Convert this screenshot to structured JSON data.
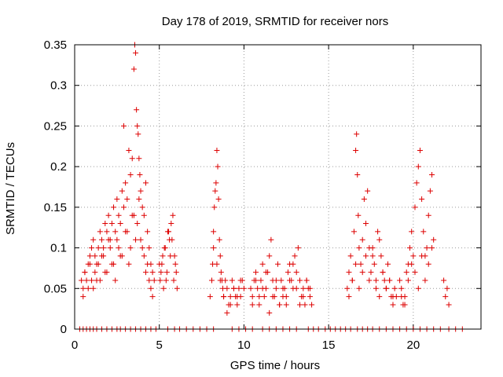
{
  "chart_data": {
    "type": "scatter",
    "title": "Day 178 of 2019, SRMTID for receiver nors",
    "xlabel": "GPS time / hours",
    "ylabel": "SRMTID / TECUs",
    "xlim": [
      0,
      24
    ],
    "ylim": [
      0,
      0.35
    ],
    "grid": true,
    "marker": "+",
    "color": "#dd0000",
    "x_ticks": [
      0,
      5,
      10,
      15,
      20
    ],
    "x_tick_labels": [
      "0",
      "5",
      "10",
      "15",
      "20"
    ],
    "y_ticks": [
      0,
      0.05,
      0.1,
      0.15,
      0.2,
      0.25,
      0.3,
      0.35
    ],
    "y_tick_labels": [
      "0",
      "0.05",
      "0.1",
      "0.15",
      "0.2",
      "0.25",
      "0.3",
      "0.35"
    ],
    "series": [
      {
        "name": "SRMTID",
        "x": [
          0.3,
          0.5,
          0.7,
          0.9,
          1.1,
          1.3,
          1.6,
          1.9,
          2.2,
          2.5,
          2.7,
          3.0,
          3.3,
          3.6,
          3.9,
          4.2,
          4.5,
          4.8,
          5.5,
          5.9,
          6.2,
          6.6,
          7.0,
          7.4,
          7.8,
          8.2,
          9.3,
          9.7,
          10.1,
          10.5,
          11.1,
          11.5,
          11.9,
          12.3,
          12.7,
          13.1,
          13.8,
          14.1,
          14.4,
          14.8,
          15.1,
          15.4,
          15.7,
          16.0,
          16.3,
          16.7,
          17.0,
          17.3,
          17.6,
          18.0,
          18.4,
          18.8,
          19.2,
          19.6,
          20.0,
          20.4,
          20.8,
          21.2,
          21.6,
          22.1,
          22.5,
          22.9,
          0.4,
          0.5,
          0.6,
          0.7,
          0.8,
          0.9,
          1.0,
          1.1,
          1.2,
          1.3,
          1.4,
          1.5,
          1.6,
          1.7,
          1.8,
          1.9,
          2.0,
          2.1,
          2.2,
          2.3,
          2.4,
          2.5,
          2.6,
          2.7,
          2.8,
          2.9,
          3.0,
          3.1,
          3.2,
          3.3,
          3.4,
          3.5,
          3.55,
          3.6,
          3.65,
          3.7,
          3.75,
          3.8,
          3.85,
          3.9,
          4.0,
          4.1,
          4.2,
          4.3,
          4.4,
          4.5,
          4.6,
          4.7,
          0.5,
          0.8,
          1.0,
          1.2,
          1.4,
          1.5,
          1.7,
          1.9,
          2.1,
          2.3,
          2.5,
          2.7,
          2.9,
          3.1,
          3.3,
          3.5,
          3.7,
          3.9,
          4.1,
          4.3,
          4.5,
          0.6,
          0.9,
          1.1,
          1.3,
          1.6,
          1.8,
          2.0,
          2.2,
          2.4,
          2.6,
          2.8,
          3.0,
          3.2,
          3.4,
          3.6,
          3.8,
          4.0,
          4.2,
          4.4,
          4.6,
          5.0,
          5.1,
          5.2,
          5.3,
          5.4,
          5.5,
          5.6,
          5.7,
          5.8,
          5.9,
          6.0,
          6.05,
          5.05,
          5.15,
          5.25,
          5.35,
          5.45,
          5.55,
          5.65,
          5.75,
          5.85,
          5.95,
          8.0,
          8.1,
          8.15,
          8.2,
          8.25,
          8.3,
          8.35,
          8.4,
          8.45,
          8.5,
          8.55,
          8.6,
          8.65,
          8.7,
          8.75,
          8.8,
          8.9,
          9.0,
          9.1,
          9.2,
          9.3,
          9.4,
          9.5,
          9.6,
          9.7,
          9.8,
          9.9,
          10.0,
          8.2,
          8.4,
          8.6,
          8.8,
          9.0,
          9.2,
          9.4,
          9.6,
          9.8,
          10.4,
          10.5,
          10.6,
          10.7,
          10.8,
          10.9,
          11.0,
          11.1,
          11.2,
          11.3,
          11.4,
          11.5,
          11.6,
          11.7,
          11.8,
          11.9,
          12.0,
          12.1,
          12.2,
          12.3,
          12.4,
          12.5,
          12.6,
          12.7,
          12.8,
          12.9,
          13.0,
          13.1,
          13.2,
          13.3,
          13.4,
          13.5,
          13.6,
          13.7,
          13.8,
          13.9,
          14.0,
          10.5,
          10.7,
          10.9,
          11.1,
          11.3,
          11.5,
          11.7,
          11.9,
          12.1,
          12.3,
          12.5,
          12.7,
          12.9,
          13.1,
          13.3,
          13.5,
          13.7,
          13.9,
          16.1,
          16.2,
          16.3,
          16.4,
          16.5,
          16.6,
          16.65,
          16.7,
          16.75,
          16.8,
          16.9,
          17.0,
          17.1,
          17.2,
          17.3,
          17.4,
          17.5,
          17.6,
          17.7,
          17.8,
          17.9,
          18.0,
          18.1,
          18.2,
          18.3,
          18.4,
          18.5,
          18.6,
          18.7,
          18.8,
          18.9,
          19.0,
          16.2,
          16.4,
          16.6,
          16.8,
          17.0,
          17.2,
          17.4,
          17.6,
          17.8,
          18.0,
          18.2,
          18.4,
          18.6,
          18.8,
          19.2,
          19.3,
          19.4,
          19.5,
          19.6,
          19.7,
          19.8,
          19.9,
          20.0,
          20.1,
          20.2,
          20.3,
          20.4,
          20.5,
          20.6,
          20.7,
          20.8,
          20.9,
          21.0,
          21.1,
          21.2,
          19.3,
          19.5,
          19.7,
          19.9,
          20.1,
          20.3,
          20.5,
          20.7,
          20.9,
          21.1,
          21.8,
          21.9,
          22.0,
          22.1
        ],
        "y": [
          0,
          0,
          0,
          0,
          0,
          0,
          0,
          0,
          0,
          0,
          0,
          0,
          0,
          0,
          0,
          0,
          0,
          0,
          0,
          0,
          0,
          0,
          0,
          0,
          0,
          0,
          0,
          0,
          0,
          0,
          0,
          0,
          0,
          0,
          0,
          0,
          0,
          0,
          0,
          0,
          0,
          0,
          0,
          0,
          0,
          0,
          0,
          0,
          0,
          0,
          0,
          0,
          0,
          0,
          0,
          0,
          0,
          0,
          0,
          0,
          0,
          0,
          0.06,
          0.05,
          0.07,
          0.06,
          0.08,
          0.09,
          0.1,
          0.11,
          0.09,
          0.08,
          0.1,
          0.12,
          0.11,
          0.1,
          0.13,
          0.12,
          0.14,
          0.11,
          0.13,
          0.15,
          0.12,
          0.16,
          0.14,
          0.13,
          0.17,
          0.15,
          0.18,
          0.16,
          0.22,
          0.19,
          0.21,
          0.32,
          0.35,
          0.34,
          0.27,
          0.25,
          0.24,
          0.21,
          0.19,
          0.17,
          0.15,
          0.14,
          0.18,
          0.12,
          0.1,
          0.08,
          0.07,
          0.06,
          0.04,
          0.05,
          0.06,
          0.07,
          0.08,
          0.06,
          0.09,
          0.07,
          0.1,
          0.08,
          0.11,
          0.09,
          0.25,
          0.12,
          0.1,
          0.14,
          0.13,
          0.11,
          0.09,
          0.08,
          0.05,
          0.07,
          0.08,
          0.05,
          0.06,
          0.09,
          0.07,
          0.11,
          0.08,
          0.06,
          0.1,
          0.09,
          0.12,
          0.08,
          0.14,
          0.11,
          0.16,
          0.1,
          0.07,
          0.06,
          0.04,
          0.08,
          0.07,
          0.09,
          0.1,
          0.06,
          0.12,
          0.11,
          0.13,
          0.14,
          0.09,
          0.07,
          0.05,
          0.06,
          0.08,
          0.05,
          0.1,
          0.07,
          0.12,
          0.09,
          0.11,
          0.06,
          0.08,
          0.04,
          0.06,
          0.08,
          0.12,
          0.15,
          0.17,
          0.18,
          0.22,
          0.2,
          0.16,
          0.11,
          0.09,
          0.07,
          0.06,
          0.05,
          0.04,
          0.06,
          0.05,
          0.03,
          0.04,
          0.06,
          0.05,
          0.04,
          0.03,
          0.05,
          0.04,
          0.06,
          0.05,
          0.1,
          0.08,
          0.06,
          0.04,
          0.02,
          0.03,
          0.05,
          0.04,
          0.06,
          0.05,
          0.04,
          0.06,
          0.07,
          0.05,
          0.03,
          0.06,
          0.08,
          0.04,
          0.05,
          0.07,
          0.09,
          0.11,
          0.06,
          0.04,
          0.05,
          0.08,
          0.03,
          0.06,
          0.04,
          0.05,
          0.03,
          0.07,
          0.08,
          0.06,
          0.05,
          0.09,
          0.07,
          0.1,
          0.06,
          0.04,
          0.05,
          0.03,
          0.06,
          0.05,
          0.04,
          0.03,
          0.03,
          0.06,
          0.04,
          0.05,
          0.07,
          0.02,
          0.04,
          0.06,
          0.03,
          0.05,
          0.04,
          0.06,
          0.08,
          0.05,
          0.03,
          0.04,
          0.06,
          0.05,
          0.05,
          0.07,
          0.09,
          0.06,
          0.12,
          0.22,
          0.24,
          0.19,
          0.14,
          0.1,
          0.08,
          0.11,
          0.16,
          0.13,
          0.17,
          0.1,
          0.07,
          0.09,
          0.08,
          0.06,
          0.12,
          0.11,
          0.09,
          0.07,
          0.06,
          0.05,
          0.08,
          0.06,
          0.04,
          0.03,
          0.05,
          0.04,
          0.04,
          0.06,
          0.08,
          0.05,
          0.07,
          0.09,
          0.06,
          0.1,
          0.05,
          0.04,
          0.07,
          0.05,
          0.06,
          0.04,
          0.06,
          0.05,
          0.03,
          0.04,
          0.07,
          0.08,
          0.1,
          0.12,
          0.09,
          0.15,
          0.18,
          0.2,
          0.22,
          0.16,
          0.12,
          0.09,
          0.1,
          0.14,
          0.17,
          0.19,
          0.11,
          0.04,
          0.03,
          0.06,
          0.08,
          0.07,
          0.05,
          0.09,
          0.06,
          0.08,
          0.1,
          0.06,
          0.04,
          0.05,
          0.03
        ]
      }
    ]
  }
}
